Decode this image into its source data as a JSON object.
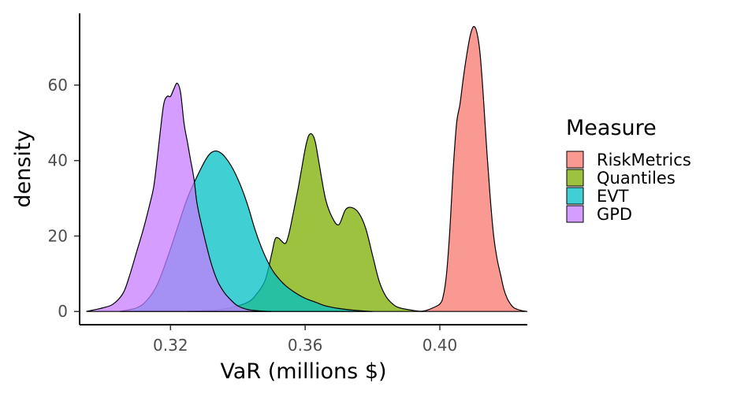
{
  "chart_data": {
    "type": "area",
    "xlabel": "VaR (millions $)",
    "ylabel": "density",
    "xlim": [
      0.293,
      0.426
    ],
    "ylim": [
      -3.5,
      79
    ],
    "x_ticks": [
      0.32,
      0.36,
      0.4
    ],
    "x_tick_labels": [
      "0.32",
      "0.36",
      "0.40"
    ],
    "y_ticks": [
      0,
      20,
      40,
      60
    ],
    "y_tick_labels": [
      "0",
      "20",
      "40",
      "60"
    ],
    "grid": false,
    "legend": {
      "title": "Measure",
      "position": "right"
    },
    "series": [
      {
        "name": "RiskMetrics",
        "color": "#F8766D",
        "x": [
          0.394,
          0.396,
          0.398,
          0.4,
          0.401,
          0.402,
          0.403,
          0.404,
          0.405,
          0.406,
          0.407,
          0.408,
          0.409,
          0.41,
          0.411,
          0.412,
          0.413,
          0.414,
          0.415,
          0.416,
          0.417,
          0.418,
          0.419,
          0.42,
          0.421,
          0.422,
          0.424,
          0.426
        ],
        "y": [
          0,
          0.3,
          1,
          2,
          4,
          10,
          22,
          38,
          50,
          55,
          62,
          68,
          73,
          75.5,
          74,
          68,
          56,
          42,
          30,
          20,
          14,
          10,
          6,
          3.5,
          2,
          1,
          0.3,
          0
        ]
      },
      {
        "name": "Quantiles",
        "color": "#7CAE00",
        "x": [
          0.325,
          0.33,
          0.335,
          0.34,
          0.343,
          0.345,
          0.348,
          0.35,
          0.351,
          0.352,
          0.354,
          0.355,
          0.356,
          0.358,
          0.36,
          0.361,
          0.362,
          0.363,
          0.364,
          0.366,
          0.368,
          0.37,
          0.372,
          0.374,
          0.376,
          0.378,
          0.38,
          0.382,
          0.384,
          0.386,
          0.388,
          0.392,
          0.395
        ],
        "y": [
          0,
          0.2,
          0.5,
          1.5,
          2.5,
          4,
          8,
          15,
          19,
          19.5,
          18,
          20,
          24,
          33,
          43,
          46.5,
          47,
          45,
          40,
          30,
          25,
          23,
          27,
          27.5,
          26,
          22,
          15,
          8,
          4,
          2,
          1,
          0.3,
          0
        ]
      },
      {
        "name": "EVT",
        "color": "#00BFC4",
        "x": [
          0.305,
          0.31,
          0.313,
          0.316,
          0.319,
          0.322,
          0.325,
          0.328,
          0.331,
          0.333,
          0.335,
          0.337,
          0.339,
          0.341,
          0.343,
          0.345,
          0.347,
          0.349,
          0.351,
          0.354,
          0.357,
          0.36,
          0.363,
          0.366,
          0.37,
          0.375,
          0.38
        ],
        "y": [
          0,
          1,
          3,
          7,
          14,
          22,
          30,
          36,
          41,
          42.5,
          42,
          40,
          37,
          33,
          28,
          22,
          17,
          13,
          10,
          7,
          5,
          3.5,
          2.5,
          1.5,
          0.8,
          0.3,
          0
        ]
      },
      {
        "name": "GPD",
        "color": "#C77CFF",
        "x": [
          0.295,
          0.3,
          0.303,
          0.306,
          0.308,
          0.31,
          0.312,
          0.314,
          0.315,
          0.316,
          0.317,
          0.318,
          0.319,
          0.32,
          0.321,
          0.322,
          0.323,
          0.324,
          0.325,
          0.326,
          0.327,
          0.328,
          0.33,
          0.332,
          0.334,
          0.336,
          0.338,
          0.34,
          0.343,
          0.346,
          0.35
        ],
        "y": [
          0,
          1,
          2,
          5,
          10,
          16,
          22,
          29,
          33,
          40,
          48,
          55,
          57,
          57,
          59,
          60.5,
          58,
          50,
          45,
          40,
          35,
          28,
          20,
          13,
          8,
          5,
          3,
          1.5,
          0.5,
          0.2,
          0
        ]
      }
    ]
  }
}
